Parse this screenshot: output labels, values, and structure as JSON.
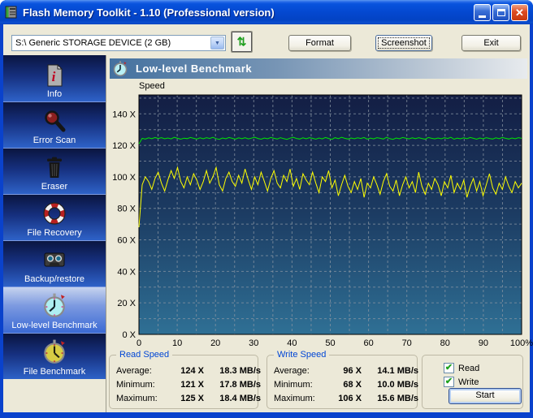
{
  "window": {
    "title": "Flash Memory Toolkit - 1.10 (Professional version)",
    "close_glyph": "✕"
  },
  "toolbar": {
    "device_select": {
      "value": "S:\\ Generic STORAGE DEVICE (2 GB)",
      "arrow_glyph": "▼"
    },
    "refresh_glyph": "⇅",
    "format_label": "Format",
    "screenshot_label": "Screenshot",
    "exit_label": "Exit"
  },
  "sidebar": {
    "items": [
      {
        "label": "Info"
      },
      {
        "label": "Error Scan"
      },
      {
        "label": "Eraser"
      },
      {
        "label": "File Recovery"
      },
      {
        "label": "Backup/restore"
      },
      {
        "label": "Low-level Benchmark",
        "selected": true
      },
      {
        "label": "File Benchmark"
      }
    ]
  },
  "main": {
    "header_title": "Low-level Benchmark",
    "read_group": {
      "title": "Read Speed",
      "rows": [
        {
          "label": "Average:",
          "x": "124 X",
          "rate": "18.3 MB/s"
        },
        {
          "label": "Minimum:",
          "x": "121 X",
          "rate": "17.8 MB/s"
        },
        {
          "label": "Maximum:",
          "x": "125 X",
          "rate": "18.4 MB/s"
        }
      ]
    },
    "write_group": {
      "title": "Write Speed",
      "rows": [
        {
          "label": "Average:",
          "x": "96 X",
          "rate": "14.1 MB/s"
        },
        {
          "label": "Minimum:",
          "x": "68 X",
          "rate": "10.0 MB/s"
        },
        {
          "label": "Maximum:",
          "x": "106 X",
          "rate": "15.6 MB/s"
        }
      ]
    },
    "controls": {
      "check_glyph": "✔",
      "read_checkbox": {
        "label": "Read",
        "checked": true
      },
      "write_checkbox": {
        "label": "Write",
        "checked": true
      },
      "start_label": "Start"
    }
  },
  "chart_data": {
    "type": "line",
    "title": "Speed",
    "xlim": [
      0,
      100
    ],
    "ylim": [
      0,
      152
    ],
    "minor_x_step": 5,
    "minor_y_step": 10,
    "grid_color": "#8a96a3",
    "bg_gradient": [
      "#131e44",
      "#1c3c63",
      "#2f7095"
    ],
    "x_ticks": [
      0,
      10,
      20,
      30,
      40,
      50,
      60,
      70,
      80,
      90,
      100
    ],
    "x_tick_labels": [
      "0",
      "10",
      "20",
      "30",
      "40",
      "50",
      "60",
      "70",
      "80",
      "90",
      "100%"
    ],
    "y_ticks": [
      0,
      20,
      40,
      60,
      80,
      100,
      120,
      140
    ],
    "y_tick_labels": [
      "0 X",
      "20 X",
      "40 X",
      "60 X",
      "80 X",
      "100 X",
      "120 X",
      "140 X"
    ],
    "legend": "none",
    "series": [
      {
        "name": "Read",
        "color": "#00e800",
        "values": [
          121.0,
          124.5,
          124.0,
          124.8,
          124.3,
          125.0,
          124.4,
          124.9,
          124.2,
          124.7,
          124.1,
          125.1,
          124.5,
          123.9,
          124.6,
          124.3,
          125.0,
          124.5,
          124.0,
          124.8,
          124.2,
          124.9,
          124.4,
          125.1,
          124.3,
          123.8,
          124.7,
          124.2,
          125.0,
          124.5,
          123.9,
          124.8,
          124.3,
          124.9,
          124.1,
          124.6,
          125.2,
          124.4,
          123.9,
          124.7,
          124.2,
          125.0,
          124.5,
          124.0,
          124.9,
          124.3,
          123.8,
          124.6,
          125.1,
          124.4,
          124.0,
          124.8,
          124.2,
          124.9,
          124.5,
          123.9,
          124.7,
          124.1,
          125.0,
          124.4,
          123.8,
          124.9,
          124.3,
          125.1,
          124.5,
          124.0,
          124.7,
          124.2,
          124.8,
          124.4,
          125.0,
          123.9,
          124.6,
          124.1,
          124.9,
          124.5,
          124.0,
          125.1,
          124.3,
          123.8,
          124.7,
          124.2,
          125.0,
          124.6,
          124.1,
          124.8,
          124.3,
          124.9,
          124.4,
          123.9,
          125.0,
          124.5,
          124.1,
          124.7,
          124.2,
          124.9,
          124.4,
          125.1,
          123.9,
          124.6,
          124.2,
          124.8,
          124.3,
          125.0,
          124.5,
          123.9,
          124.7,
          124.2,
          124.9,
          124.4,
          124.0,
          124.8,
          124.3,
          125.0,
          124.5,
          124.0,
          124.7,
          124.2,
          124.9,
          124.5
        ]
      },
      {
        "name": "Write",
        "color": "#ffff00",
        "values": [
          68,
          95,
          100,
          97,
          92,
          99,
          103,
          96,
          91,
          98,
          104,
          99,
          106,
          97,
          93,
          100,
          95,
          102,
          98,
          92,
          97,
          104,
          96,
          100,
          106,
          95,
          91,
          99,
          103,
          97,
          94,
          101,
          96,
          105,
          98,
          92,
          100,
          95,
          103,
          97,
          91,
          99,
          104,
          96,
          93,
          101,
          97,
          105,
          94,
          99,
          92,
          102,
          98,
          95,
          103,
          96,
          90,
          100,
          97,
          104,
          93,
          98,
          88,
          95,
          101,
          94,
          90,
          97,
          92,
          99,
          87,
          96,
          93,
          100,
          95,
          89,
          97,
          102,
          94,
          91,
          98,
          88,
          95,
          100,
          93,
          97,
          90,
          103,
          94,
          89,
          96,
          92,
          99,
          95,
          88,
          97,
          93,
          101,
          90,
          96,
          92,
          98,
          87,
          94,
          99,
          91,
          97,
          88,
          95,
          102,
          93,
          89,
          96,
          92,
          100,
          94,
          90,
          97,
          93,
          96
        ]
      }
    ]
  }
}
